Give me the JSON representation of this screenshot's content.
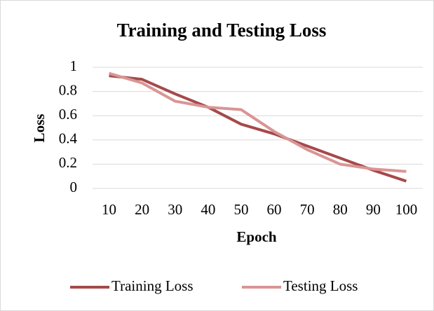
{
  "chart_data": {
    "type": "line",
    "title": "Training and Testing Loss",
    "x_label": "Epoch",
    "y_label": "Loss",
    "categories": [
      "10",
      "20",
      "30",
      "40",
      "50",
      "60",
      "70",
      "80",
      "90",
      "100"
    ],
    "series": [
      {
        "name": "Training Loss",
        "color": "#a5494a",
        "values": [
          0.93,
          0.9,
          0.78,
          0.67,
          0.53,
          0.45,
          0.35,
          0.25,
          0.15,
          0.06
        ]
      },
      {
        "name": "Testing Loss",
        "color": "#d99594",
        "values": [
          0.95,
          0.87,
          0.72,
          0.67,
          0.65,
          0.47,
          0.32,
          0.2,
          0.16,
          0.14
        ]
      }
    ],
    "ylim": [
      0,
      1
    ],
    "yticks": [
      0,
      0.2,
      0.4,
      0.6,
      0.8,
      1
    ],
    "grid": true,
    "legend": "bottom"
  }
}
